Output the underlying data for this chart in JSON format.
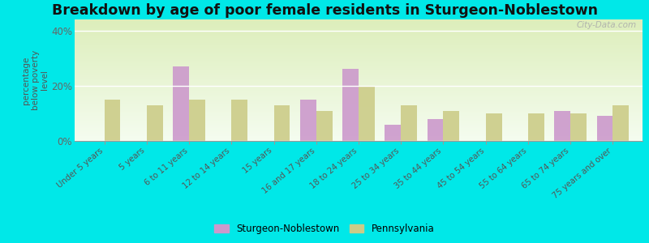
{
  "title": "Breakdown by age of poor female residents in Sturgeon-Noblestown",
  "ylabel": "percentage\nbelow poverty\nlevel",
  "categories": [
    "Under 5 years",
    "5 years",
    "6 to 11 years",
    "12 to 14 years",
    "15 years",
    "16 and 17 years",
    "18 to 24 years",
    "25 to 34 years",
    "35 to 44 years",
    "45 to 54 years",
    "55 to 64 years",
    "65 to 74 years",
    "75 years and over"
  ],
  "sturgeon_values": [
    0,
    0,
    27,
    0,
    0,
    15,
    26,
    6,
    8,
    0,
    0,
    11,
    9
  ],
  "pennsylvania_values": [
    15,
    13,
    15,
    15,
    13,
    11,
    20,
    13,
    11,
    10,
    10,
    10,
    13
  ],
  "sturgeon_color": "#cc99cc",
  "pennsylvania_color": "#cccc88",
  "ylim": [
    0,
    44
  ],
  "yticks": [
    0,
    20,
    40
  ],
  "ytick_labels": [
    "0%",
    "20%",
    "40%"
  ],
  "bg_top_color": "#ddeebb",
  "bg_bottom_color": "#f5faf0",
  "outer_background": "#00e8e8",
  "bar_width": 0.38,
  "title_fontsize": 12.5,
  "legend_labels": [
    "Sturgeon-Noblestown",
    "Pennsylvania"
  ],
  "watermark": "City-Data.com"
}
